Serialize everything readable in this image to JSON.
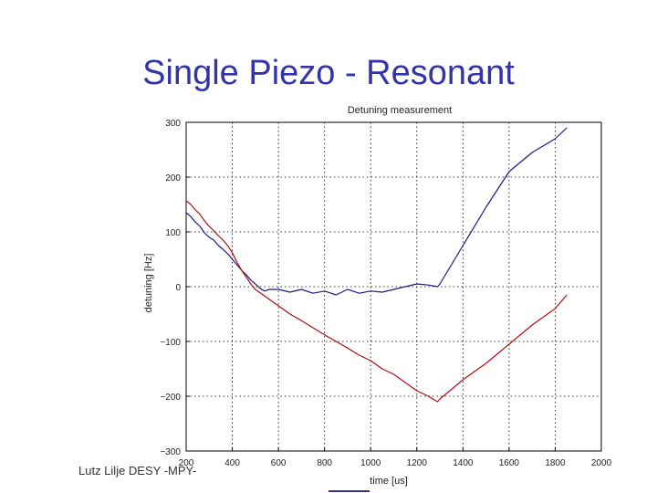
{
  "slide": {
    "title": "Single Piezo - Resonant",
    "footer": "Lutz Lilje   DESY -MPY-"
  },
  "chart_data": {
    "type": "line",
    "title": "Detuning measurement",
    "xlabel": "time [us]",
    "ylabel": "detuning [Hz]",
    "xlim": [
      200,
      2000
    ],
    "ylim": [
      -300,
      300
    ],
    "xticks": [
      200,
      400,
      600,
      800,
      1000,
      1200,
      1400,
      1600,
      1800,
      2000
    ],
    "yticks": [
      -300,
      -200,
      -100,
      0,
      100,
      200,
      300
    ],
    "grid": true,
    "series": [
      {
        "color": "#1a1a8c",
        "x": [
          200,
          220,
          240,
          260,
          280,
          300,
          320,
          340,
          360,
          380,
          400,
          420,
          440,
          460,
          480,
          500,
          520,
          540,
          560,
          600,
          650,
          700,
          750,
          800,
          850,
          900,
          950,
          1000,
          1050,
          1100,
          1150,
          1200,
          1250,
          1290,
          1300,
          1400,
          1500,
          1600,
          1700,
          1800,
          1850
        ],
        "y": [
          135,
          128,
          118,
          110,
          98,
          90,
          85,
          75,
          68,
          60,
          50,
          40,
          30,
          22,
          12,
          5,
          -3,
          -8,
          -5,
          -5,
          -10,
          -5,
          -12,
          -8,
          -15,
          -5,
          -12,
          -8,
          -10,
          -5,
          0,
          5,
          3,
          0,
          5,
          75,
          145,
          210,
          245,
          270,
          290
        ]
      },
      {
        "color": "#b01010",
        "x": [
          200,
          220,
          240,
          260,
          280,
          300,
          320,
          340,
          360,
          380,
          400,
          420,
          440,
          460,
          480,
          500,
          550,
          600,
          650,
          700,
          750,
          800,
          850,
          900,
          950,
          1000,
          1050,
          1100,
          1150,
          1200,
          1250,
          1290,
          1300,
          1400,
          1500,
          1600,
          1700,
          1800,
          1850
        ],
        "y": [
          157,
          150,
          140,
          132,
          120,
          110,
          102,
          93,
          85,
          75,
          62,
          45,
          30,
          18,
          5,
          -5,
          -20,
          -35,
          -50,
          -62,
          -75,
          -88,
          -100,
          -112,
          -125,
          -135,
          -150,
          -160,
          -175,
          -190,
          -200,
          -210,
          -205,
          -170,
          -140,
          -105,
          -70,
          -40,
          -15
        ]
      }
    ]
  }
}
